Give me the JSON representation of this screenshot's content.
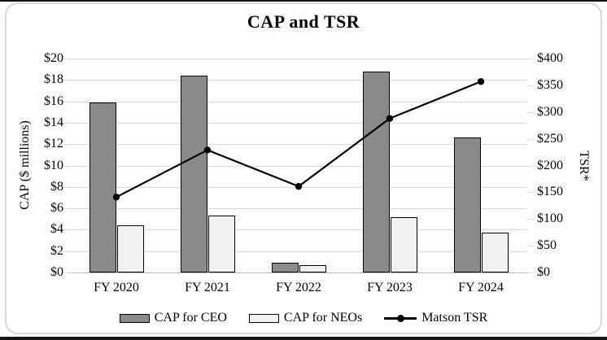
{
  "page": {
    "background": "#ffffff",
    "card_border_color": "#d9d9d9",
    "top_edge_color": "#111111",
    "bottom_edge_color": "#161616"
  },
  "chart_data": {
    "type": "bar",
    "subtype": "grouped bars with secondary-axis line",
    "title": "CAP and TSR",
    "categories": [
      "FY 2020",
      "FY 2021",
      "FY 2022",
      "FY 2023",
      "FY 2024"
    ],
    "series": [
      {
        "name": "CAP for CEO",
        "type": "bar",
        "axis": "left",
        "values": [
          15.9,
          18.4,
          0.9,
          18.8,
          12.6
        ],
        "fill": "#8a8a8a",
        "stroke": "#000000"
      },
      {
        "name": "CAP for NEOs",
        "type": "bar",
        "axis": "left",
        "values": [
          4.4,
          5.3,
          0.7,
          5.2,
          3.7
        ],
        "fill": "#f2f2f2",
        "stroke": "#000000"
      },
      {
        "name": "Matson TSR",
        "type": "line",
        "axis": "right",
        "values": [
          141,
          229,
          161,
          288,
          357
        ],
        "color": "#000000",
        "marker": "circle"
      }
    ],
    "left_axis": {
      "label": "CAP ($ millions)",
      "min": 0,
      "max": 20,
      "step": 2,
      "tick_prefix": "$",
      "ticks_top_to_bottom": [
        "$20",
        "$18",
        "$16",
        "$14",
        "$12",
        "$10",
        "$8",
        "$6",
        "$4",
        "$2",
        "$0"
      ]
    },
    "right_axis": {
      "label": "TSR*",
      "min": 0,
      "max": 400,
      "step": 50,
      "tick_prefix": "$",
      "ticks_top_to_bottom": [
        "$400",
        "$350",
        "$300",
        "$250",
        "$200",
        "$150",
        "$100",
        "$50",
        "$0"
      ]
    },
    "grid": "horizontal gridlines on",
    "gridline_color": "#d9d9d9",
    "legend_position": "bottom"
  }
}
